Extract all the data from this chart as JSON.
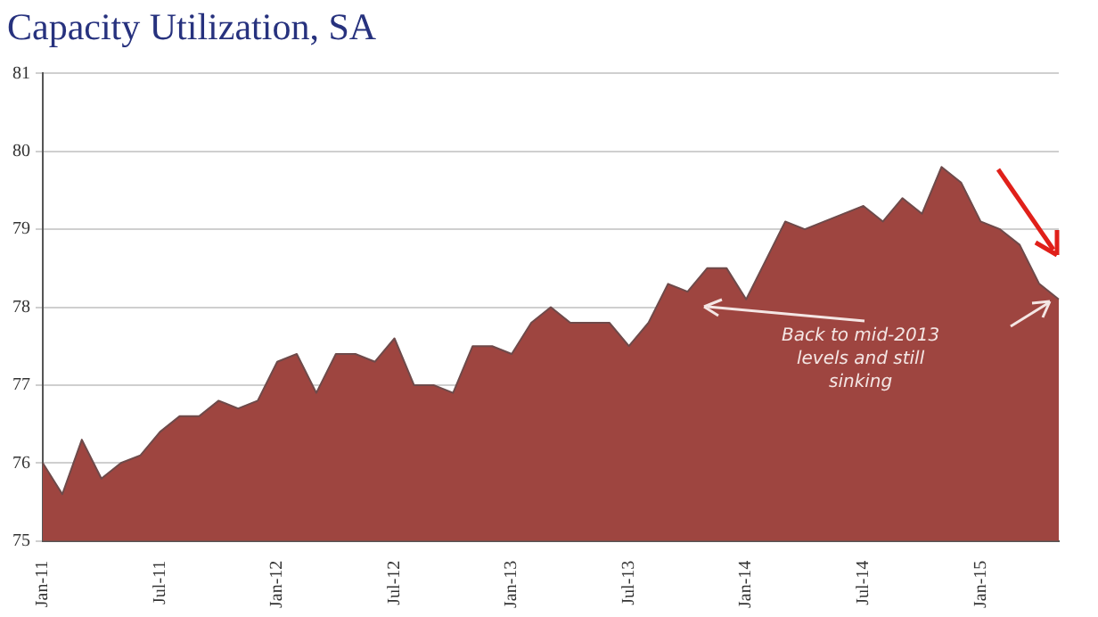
{
  "chart_data": {
    "type": "area",
    "title": "Capacity Utilization, SA",
    "categories": [
      "Jan-11",
      null,
      null,
      null,
      null,
      null,
      "Jul-11",
      null,
      null,
      null,
      null,
      null,
      "Jan-12",
      null,
      null,
      null,
      null,
      null,
      "Jul-12",
      null,
      null,
      null,
      null,
      null,
      "Jan-13",
      null,
      null,
      null,
      null,
      null,
      "Jul-13",
      null,
      null,
      null,
      null,
      null,
      "Jan-14",
      null,
      null,
      null,
      null,
      null,
      "Jul-14",
      null,
      null,
      null,
      null,
      null,
      "Jan-15",
      null,
      null,
      null,
      null
    ],
    "values": [
      76.0,
      75.6,
      76.3,
      75.8,
      76.0,
      76.1,
      76.4,
      76.6,
      76.6,
      76.8,
      76.7,
      76.8,
      77.3,
      77.4,
      76.9,
      77.4,
      77.4,
      77.3,
      77.6,
      77.0,
      77.0,
      76.9,
      77.5,
      77.5,
      77.4,
      77.8,
      78.0,
      77.8,
      77.8,
      77.8,
      77.5,
      77.8,
      78.3,
      78.2,
      78.5,
      78.5,
      78.1,
      78.6,
      79.1,
      79.0,
      79.1,
      79.2,
      79.3,
      79.1,
      79.4,
      79.2,
      79.8,
      79.6,
      79.1,
      79.0,
      78.8,
      78.3,
      78.1
    ],
    "color": "#9e4540",
    "ylim": [
      75,
      81
    ],
    "yticks": [
      75,
      76,
      77,
      78,
      79,
      80,
      81
    ],
    "grid": "y",
    "legend": false,
    "annotations": [
      "Back to mid-2013 levels and still sinking"
    ]
  }
}
